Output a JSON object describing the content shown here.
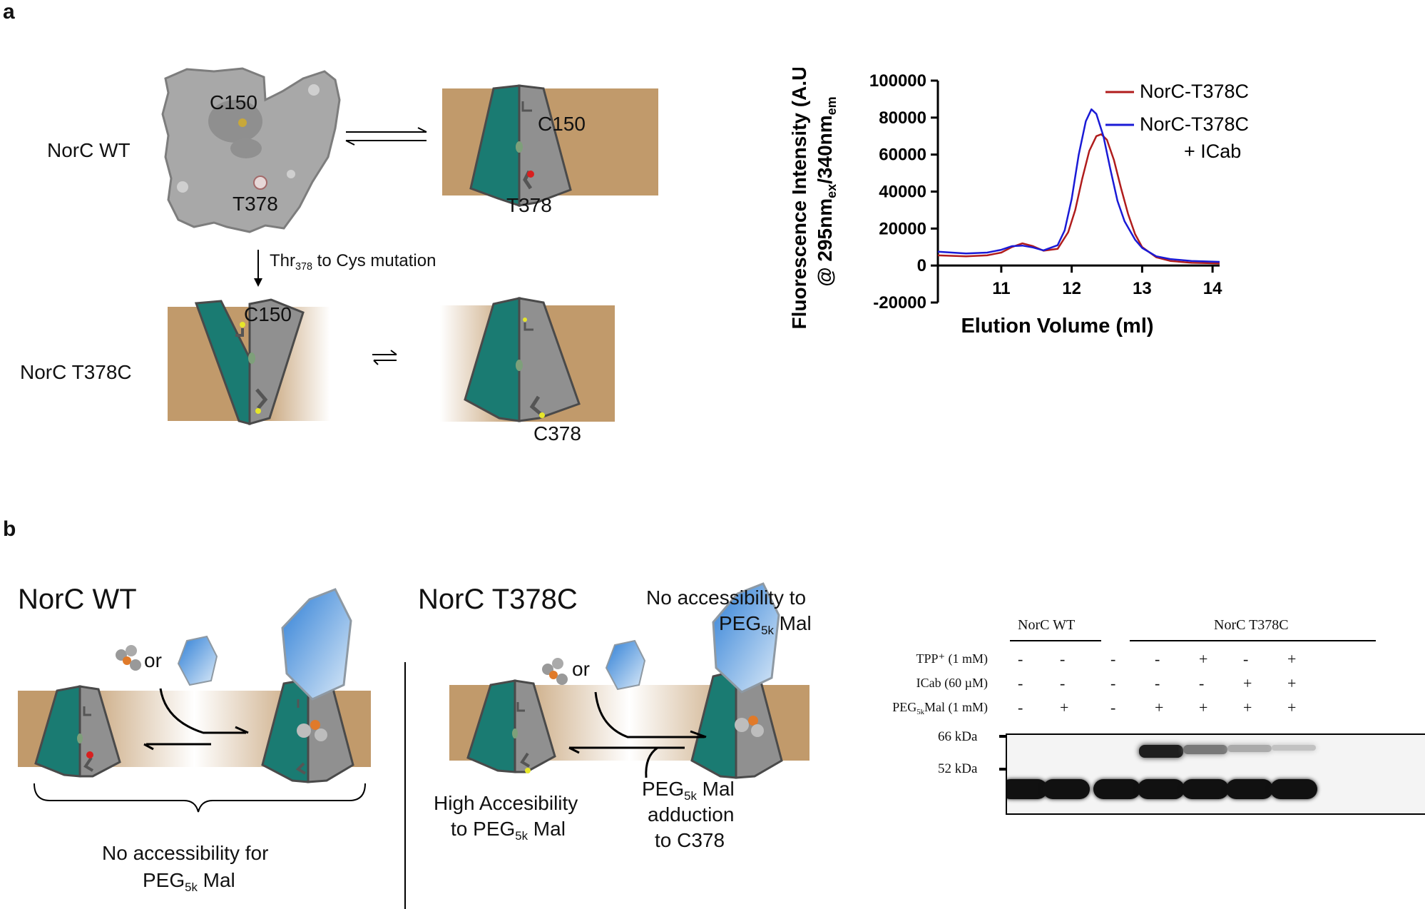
{
  "panels": {
    "a": "a",
    "b": "b"
  },
  "panel_a": {
    "norc_wt": "NorC WT",
    "norc_t378c": "NorC T378C",
    "c150": "C150",
    "t378": "T378",
    "c378": "C378",
    "mutation_prefix": "Thr",
    "mutation_sub": "378",
    "mutation_suffix": " to Cys mutation"
  },
  "panel_b": {
    "wt_title": "NorC WT",
    "mut_title": "NorC T378C",
    "or": "or",
    "no_access_for_1": "No accessibility for",
    "peg_main": "PEG",
    "peg_sub": "5k",
    "peg_mal": " Mal",
    "no_access_to_1": "No accessibility to",
    "high_access_1": "High Accesibility",
    "high_access_2": "to ",
    "adduction_2": "adduction",
    "adduction_3": "to C378"
  },
  "gel": {
    "group_wt": "NorC WT",
    "group_mut": "NorC T378C",
    "rows": [
      {
        "label": "TPP⁺ (1 mM)",
        "signs": [
          "-",
          "-",
          "-",
          "-",
          "+",
          "-",
          "+"
        ]
      },
      {
        "label": "ICab (60 µM)",
        "signs": [
          "-",
          "-",
          "-",
          "-",
          "-",
          "+",
          "+"
        ]
      },
      {
        "label_main": "PEG",
        "label_sub": "5k",
        "label_rest": "Mal (1 mM)",
        "signs": [
          "-",
          "+",
          "-",
          "+",
          "+",
          "+",
          "+"
        ]
      }
    ],
    "marker_66": "66 kDa",
    "marker_52": "52 kDa",
    "upper_band_intensity": [
      0,
      0,
      0,
      1.0,
      0.55,
      0.3,
      0.18
    ]
  },
  "chart_data": {
    "type": "line",
    "title": "",
    "xlabel": "Elution Volume (ml)",
    "ylabel_line1": "Fluorescence Intensity (A.U.)",
    "ylabel_line2": "@ 295nmex/340nmem",
    "xlim": [
      10.1,
      14.1
    ],
    "ylim": [
      -20000,
      100000
    ],
    "xticks": [
      11,
      12,
      13,
      14
    ],
    "yticks": [
      -20000,
      0,
      20000,
      40000,
      60000,
      80000,
      100000
    ],
    "legend_position": "top-right",
    "series": [
      {
        "name": "NorC-T378C",
        "color": "#b01c1c",
        "x": [
          10.1,
          10.5,
          10.8,
          11.0,
          11.15,
          11.3,
          11.45,
          11.6,
          11.8,
          11.95,
          12.05,
          12.15,
          12.25,
          12.35,
          12.42,
          12.5,
          12.6,
          12.7,
          12.8,
          12.9,
          13.0,
          13.2,
          13.4,
          13.7,
          14.1
        ],
        "y": [
          5500,
          5000,
          5500,
          7000,
          10000,
          12000,
          10500,
          8000,
          9000,
          18000,
          30000,
          47000,
          62000,
          70000,
          71000,
          68000,
          57000,
          42000,
          28000,
          17000,
          10000,
          4500,
          2500,
          1500,
          1200
        ]
      },
      {
        "name": "NorC-T378C\n+ ICab",
        "color": "#1a1ad6",
        "x": [
          10.1,
          10.5,
          10.8,
          11.0,
          11.15,
          11.3,
          11.45,
          11.6,
          11.8,
          11.9,
          12.0,
          12.1,
          12.2,
          12.28,
          12.35,
          12.45,
          12.55,
          12.65,
          12.75,
          12.9,
          13.0,
          13.2,
          13.4,
          13.7,
          14.1
        ],
        "y": [
          7500,
          6500,
          7000,
          8500,
          10500,
          10800,
          9800,
          8200,
          11000,
          19000,
          36000,
          60000,
          78000,
          84500,
          82000,
          70000,
          52000,
          35000,
          24000,
          14000,
          9500,
          5000,
          3500,
          2500,
          2000
        ]
      }
    ]
  }
}
